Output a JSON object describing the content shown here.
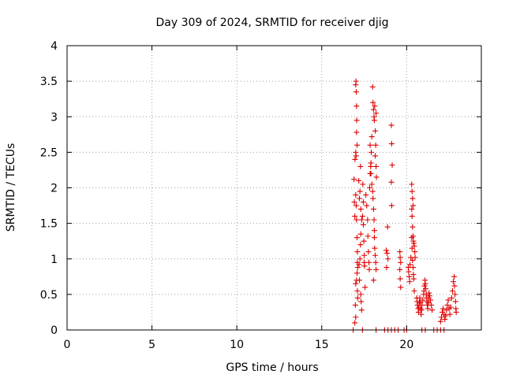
{
  "chart_data": {
    "type": "scatter",
    "title": "Day 309 of 2024, SRMTID for receiver djig",
    "xlabel": "GPS time / hours",
    "ylabel": "SRMTID / TECUs",
    "xlim": [
      0,
      24.4
    ],
    "ylim": [
      0,
      4
    ],
    "xticks": [
      0,
      5,
      10,
      15,
      20
    ],
    "xtick_labels": [
      "0",
      "5",
      "10",
      "15",
      "20"
    ],
    "yticks": [
      0,
      0.5,
      1,
      1.5,
      2,
      2.5,
      3,
      3.5,
      4
    ],
    "ytick_labels": [
      "0",
      "0.5",
      "1",
      "1.5",
      "2",
      "2.5",
      "3",
      "3.5",
      "4"
    ],
    "grid": true,
    "marker": "plus",
    "color": "#e00000",
    "series": [
      {
        "name": "SRMTID",
        "points": [
          [
            16.85,
            0.0
          ],
          [
            17.4,
            0.0
          ],
          [
            18.2,
            0.0
          ],
          [
            18.7,
            0.0
          ],
          [
            18.9,
            0.0
          ],
          [
            19.1,
            0.0
          ],
          [
            19.3,
            0.0
          ],
          [
            19.5,
            0.0
          ],
          [
            19.85,
            0.0
          ],
          [
            20.0,
            0.0
          ],
          [
            20.9,
            0.0
          ],
          [
            21.1,
            0.0
          ],
          [
            21.6,
            0.0
          ],
          [
            21.8,
            0.0
          ],
          [
            22.0,
            0.0
          ],
          [
            22.2,
            0.0
          ],
          [
            16.9,
            2.12
          ],
          [
            16.92,
            1.8
          ],
          [
            16.95,
            1.6
          ],
          [
            16.98,
            0.35
          ],
          [
            17.0,
            3.45
          ],
          [
            17.02,
            3.5
          ],
          [
            17.03,
            3.35
          ],
          [
            17.05,
            3.15
          ],
          [
            17.06,
            2.95
          ],
          [
            17.05,
            2.78
          ],
          [
            17.08,
            2.6
          ],
          [
            17.0,
            2.5
          ],
          [
            17.02,
            2.45
          ],
          [
            16.96,
            2.4
          ],
          [
            17.0,
            1.9
          ],
          [
            17.03,
            1.75
          ],
          [
            17.05,
            1.55
          ],
          [
            17.08,
            1.3
          ],
          [
            17.1,
            1.1
          ],
          [
            17.1,
            0.95
          ],
          [
            17.12,
            0.88
          ],
          [
            17.08,
            0.8
          ],
          [
            17.05,
            0.7
          ],
          [
            17.0,
            0.65
          ],
          [
            17.1,
            0.55
          ],
          [
            17.12,
            0.45
          ],
          [
            16.95,
            0.1
          ],
          [
            17.0,
            0.18
          ],
          [
            17.2,
            0.92
          ],
          [
            17.25,
            1.0
          ],
          [
            17.28,
            1.2
          ],
          [
            17.3,
            1.35
          ],
          [
            17.35,
            1.55
          ],
          [
            17.3,
            1.7
          ],
          [
            17.22,
            1.85
          ],
          [
            17.25,
            1.95
          ],
          [
            17.18,
            2.1
          ],
          [
            17.28,
            2.3
          ],
          [
            17.22,
            0.7
          ],
          [
            17.3,
            0.5
          ],
          [
            17.32,
            0.4
          ],
          [
            17.35,
            0.28
          ],
          [
            17.4,
            1.6
          ],
          [
            17.45,
            1.48
          ],
          [
            17.48,
            1.25
          ],
          [
            17.5,
            1.05
          ],
          [
            17.52,
            0.9
          ],
          [
            17.55,
            0.6
          ],
          [
            17.42,
            2.05
          ],
          [
            17.45,
            1.8
          ],
          [
            17.5,
            0.95
          ],
          [
            17.6,
            1.9
          ],
          [
            17.65,
            1.75
          ],
          [
            17.7,
            1.55
          ],
          [
            17.72,
            1.32
          ],
          [
            17.75,
            1.1
          ],
          [
            17.78,
            0.95
          ],
          [
            17.8,
            0.85
          ],
          [
            17.82,
            2.0
          ],
          [
            17.85,
            2.2
          ],
          [
            17.9,
            2.35
          ],
          [
            17.92,
            2.5
          ],
          [
            17.85,
            2.6
          ],
          [
            17.95,
            2.72
          ],
          [
            17.88,
            2.3
          ],
          [
            17.9,
            2.2
          ],
          [
            17.95,
            2.05
          ],
          [
            18.0,
            1.95
          ],
          [
            18.02,
            1.85
          ],
          [
            18.05,
            1.7
          ],
          [
            18.08,
            1.55
          ],
          [
            18.1,
            1.4
          ],
          [
            18.0,
            3.42
          ],
          [
            18.02,
            3.2
          ],
          [
            18.05,
            3.1
          ],
          [
            18.08,
            3.0
          ],
          [
            18.1,
            2.95
          ],
          [
            18.12,
            3.15
          ],
          [
            18.15,
            2.8
          ],
          [
            18.2,
            3.05
          ],
          [
            18.18,
            2.6
          ],
          [
            18.15,
            2.45
          ],
          [
            18.2,
            2.3
          ],
          [
            18.22,
            2.15
          ],
          [
            18.1,
            1.3
          ],
          [
            18.12,
            1.15
          ],
          [
            18.15,
            1.05
          ],
          [
            18.18,
            0.95
          ],
          [
            18.2,
            0.85
          ],
          [
            18.05,
            0.7
          ],
          [
            18.8,
            1.12
          ],
          [
            18.85,
            1.08
          ],
          [
            18.9,
            1.0
          ],
          [
            18.82,
            0.88
          ],
          [
            18.88,
            1.45
          ],
          [
            19.1,
            2.88
          ],
          [
            19.12,
            2.62
          ],
          [
            19.15,
            2.32
          ],
          [
            19.1,
            2.08
          ],
          [
            19.12,
            1.75
          ],
          [
            19.6,
            1.1
          ],
          [
            19.62,
            1.02
          ],
          [
            19.65,
            0.95
          ],
          [
            19.6,
            0.85
          ],
          [
            19.62,
            0.72
          ],
          [
            19.65,
            0.6
          ],
          [
            20.1,
            0.88
          ],
          [
            20.12,
            0.82
          ],
          [
            20.15,
            0.75
          ],
          [
            20.18,
            0.68
          ],
          [
            20.2,
            0.92
          ],
          [
            20.25,
            1.02
          ],
          [
            20.3,
            2.05
          ],
          [
            20.32,
            1.95
          ],
          [
            20.35,
            1.85
          ],
          [
            20.38,
            1.75
          ],
          [
            20.3,
            1.7
          ],
          [
            20.32,
            1.6
          ],
          [
            20.35,
            1.45
          ],
          [
            20.38,
            1.32
          ],
          [
            20.4,
            1.25
          ],
          [
            20.42,
            1.22
          ],
          [
            20.45,
            1.18
          ],
          [
            20.48,
            1.1
          ],
          [
            20.5,
            1.02
          ],
          [
            20.3,
            1.3
          ],
          [
            20.32,
            1.15
          ],
          [
            20.35,
            0.98
          ],
          [
            20.38,
            0.88
          ],
          [
            20.4,
            0.78
          ],
          [
            20.42,
            0.72
          ],
          [
            20.45,
            0.55
          ],
          [
            20.6,
            0.45
          ],
          [
            20.62,
            0.4
          ],
          [
            20.65,
            0.35
          ],
          [
            20.68,
            0.3
          ],
          [
            20.7,
            0.25
          ],
          [
            20.72,
            0.32
          ],
          [
            20.75,
            0.4
          ],
          [
            20.78,
            0.45
          ],
          [
            20.8,
            0.38
          ],
          [
            20.82,
            0.3
          ],
          [
            20.85,
            0.22
          ],
          [
            20.88,
            0.28
          ],
          [
            20.9,
            0.35
          ],
          [
            20.95,
            0.42
          ],
          [
            21.0,
            0.5
          ],
          [
            21.02,
            0.55
          ],
          [
            21.05,
            0.62
          ],
          [
            21.08,
            0.7
          ],
          [
            21.1,
            0.65
          ],
          [
            21.12,
            0.58
          ],
          [
            21.15,
            0.5
          ],
          [
            21.18,
            0.45
          ],
          [
            21.2,
            0.4
          ],
          [
            21.22,
            0.35
          ],
          [
            21.25,
            0.3
          ],
          [
            21.28,
            0.38
          ],
          [
            21.3,
            0.45
          ],
          [
            21.32,
            0.52
          ],
          [
            21.35,
            0.48
          ],
          [
            21.4,
            0.42
          ],
          [
            21.45,
            0.35
          ],
          [
            21.5,
            0.28
          ],
          [
            22.0,
            0.12
          ],
          [
            22.05,
            0.18
          ],
          [
            22.1,
            0.25
          ],
          [
            22.15,
            0.3
          ],
          [
            22.2,
            0.22
          ],
          [
            22.25,
            0.15
          ],
          [
            22.3,
            0.2
          ],
          [
            22.35,
            0.28
          ],
          [
            22.4,
            0.35
          ],
          [
            22.45,
            0.42
          ],
          [
            22.5,
            0.3
          ],
          [
            22.55,
            0.22
          ],
          [
            22.6,
            0.32
          ],
          [
            22.65,
            0.45
          ],
          [
            22.7,
            0.55
          ],
          [
            22.75,
            0.68
          ],
          [
            22.8,
            0.75
          ],
          [
            22.82,
            0.62
          ],
          [
            22.85,
            0.5
          ],
          [
            22.88,
            0.4
          ],
          [
            22.9,
            0.3
          ],
          [
            22.92,
            0.25
          ]
        ]
      }
    ]
  }
}
